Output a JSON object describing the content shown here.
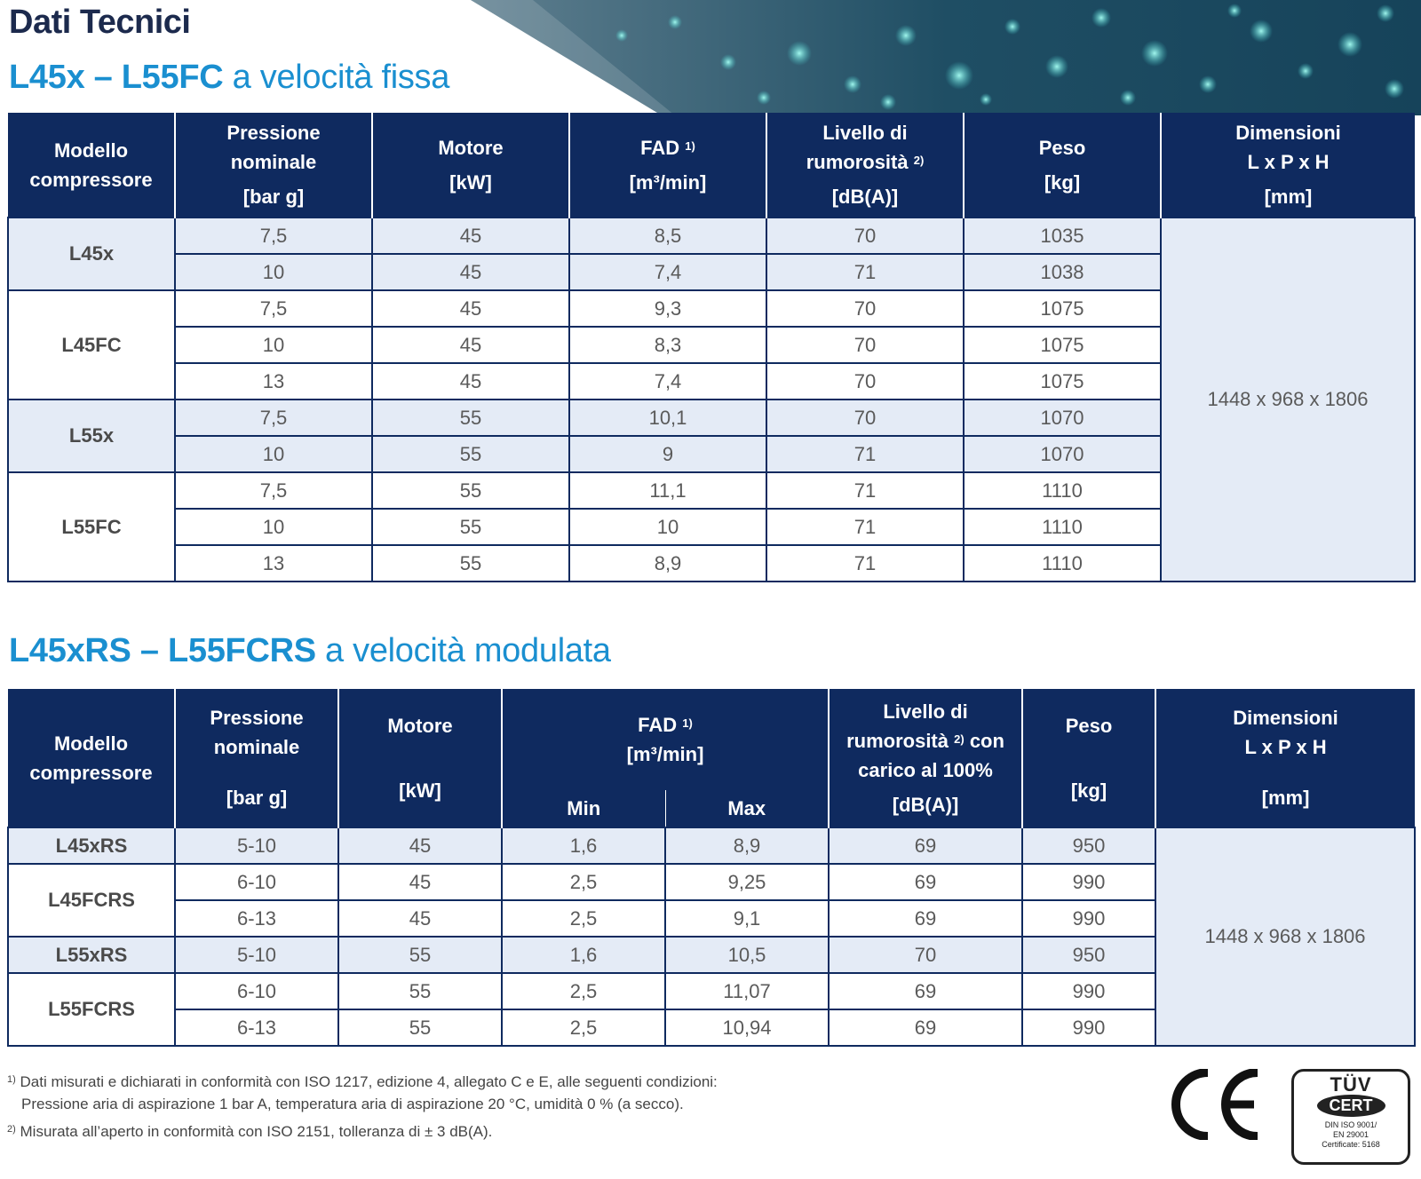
{
  "page": {
    "title": "Dati Tecnici",
    "section1": {
      "bold": "L45x – L55FC",
      "rest": " a velocità fissa"
    },
    "section2": {
      "bold": "L45xRS – L55FCRS",
      "rest": " a velocità modulata"
    }
  },
  "colors": {
    "header_bg": "#0f2a5f",
    "accent": "#1a8fd0",
    "shade": "#e4ebf6"
  },
  "table1": {
    "headers": {
      "model": [
        "Modello",
        "compressore"
      ],
      "pressure": [
        "Pressione",
        "nominale"
      ],
      "pressure_unit": "[bar g]",
      "motor": "Motore",
      "motor_unit": "[kW]",
      "fad": "FAD",
      "fad_sup": "1)",
      "fad_unit": "[m³/min]",
      "noise": [
        "Livello di",
        "rumorosità"
      ],
      "noise_sup": "2)",
      "noise_unit": "[dB(A)]",
      "weight": "Peso",
      "weight_unit": "[kg]",
      "dims": [
        "Dimensioni",
        "L x P x H"
      ],
      "dims_unit": "[mm]"
    },
    "dimensions": "1448 x 968 x 1806",
    "groups": [
      {
        "model": "L45x",
        "rows": [
          {
            "p": "7,5",
            "kw": "45",
            "fad": "8,5",
            "db": "70",
            "kg": "1035"
          },
          {
            "p": "10",
            "kw": "45",
            "fad": "7,4",
            "db": "71",
            "kg": "1038"
          }
        ]
      },
      {
        "model": "L45FC",
        "rows": [
          {
            "p": "7,5",
            "kw": "45",
            "fad": "9,3",
            "db": "70",
            "kg": "1075"
          },
          {
            "p": "10",
            "kw": "45",
            "fad": "8,3",
            "db": "70",
            "kg": "1075"
          },
          {
            "p": "13",
            "kw": "45",
            "fad": "7,4",
            "db": "70",
            "kg": "1075"
          }
        ]
      },
      {
        "model": "L55x",
        "rows": [
          {
            "p": "7,5",
            "kw": "55",
            "fad": "10,1",
            "db": "70",
            "kg": "1070"
          },
          {
            "p": "10",
            "kw": "55",
            "fad": "9",
            "db": "71",
            "kg": "1070"
          }
        ]
      },
      {
        "model": "L55FC",
        "rows": [
          {
            "p": "7,5",
            "kw": "55",
            "fad": "11,1",
            "db": "71",
            "kg": "1110"
          },
          {
            "p": "10",
            "kw": "55",
            "fad": "10",
            "db": "71",
            "kg": "1110"
          },
          {
            "p": "13",
            "kw": "55",
            "fad": "8,9",
            "db": "71",
            "kg": "1110"
          }
        ]
      }
    ]
  },
  "table2": {
    "headers": {
      "model": [
        "Modello",
        "compressore"
      ],
      "pressure": [
        "Pressione",
        "nominale"
      ],
      "pressure_unit": "[bar g]",
      "motor": "Motore",
      "motor_unit": "[kW]",
      "fad": "FAD",
      "fad_sup": "1)",
      "fad_unit": "[m³/min]",
      "fad_min": "Min",
      "fad_max": "Max",
      "noise": [
        "Livello di",
        "rumorosità",
        "con",
        "carico al 100%"
      ],
      "noise_sup": "2)",
      "noise_unit": "[dB(A)]",
      "weight": "Peso",
      "weight_unit": "[kg]",
      "dims": [
        "Dimensioni",
        "L x P x H"
      ],
      "dims_unit": "[mm]"
    },
    "dimensions": "1448 x 968 x 1806",
    "groups": [
      {
        "model": "L45xRS",
        "rows": [
          {
            "p": "5-10",
            "kw": "45",
            "min": "1,6",
            "max": "8,9",
            "db": "69",
            "kg": "950"
          }
        ]
      },
      {
        "model": "L45FCRS",
        "rows": [
          {
            "p": "6-10",
            "kw": "45",
            "min": "2,5",
            "max": "9,25",
            "db": "69",
            "kg": "990"
          },
          {
            "p": "6-13",
            "kw": "45",
            "min": "2,5",
            "max": "9,1",
            "db": "69",
            "kg": "990"
          }
        ]
      },
      {
        "model": "L55xRS",
        "rows": [
          {
            "p": "5-10",
            "kw": "55",
            "min": "1,6",
            "max": "10,5",
            "db": "70",
            "kg": "950"
          }
        ]
      },
      {
        "model": "L55FCRS",
        "rows": [
          {
            "p": "6-10",
            "kw": "55",
            "min": "2,5",
            "max": "11,07",
            "db": "69",
            "kg": "990"
          },
          {
            "p": "6-13",
            "kw": "55",
            "min": "2,5",
            "max": "10,94",
            "db": "69",
            "kg": "990"
          }
        ]
      }
    ]
  },
  "footnotes": {
    "fn1_mark": "1)",
    "fn1_line1": "Dati misurati e dichiarati in conformità con ISO 1217, edizione 4, allegato C e E, alle seguenti condizioni:",
    "fn1_line2": "Pressione aria di aspirazione 1 bar A, temperatura aria di aspirazione 20 °C, umidità 0 % (a secco).",
    "fn2_mark": "2)",
    "fn2_line": "Misurata all’aperto in conformità con ISO 2151, tolleranza di ± 3 dB(A)."
  },
  "logos": {
    "ce": "CE",
    "tuv_top": "TÜV",
    "tuv_cert": "CERT",
    "tuv_lines": [
      "DIN ISO 9001/",
      "EN 29001",
      "Certificate: 5168"
    ]
  }
}
